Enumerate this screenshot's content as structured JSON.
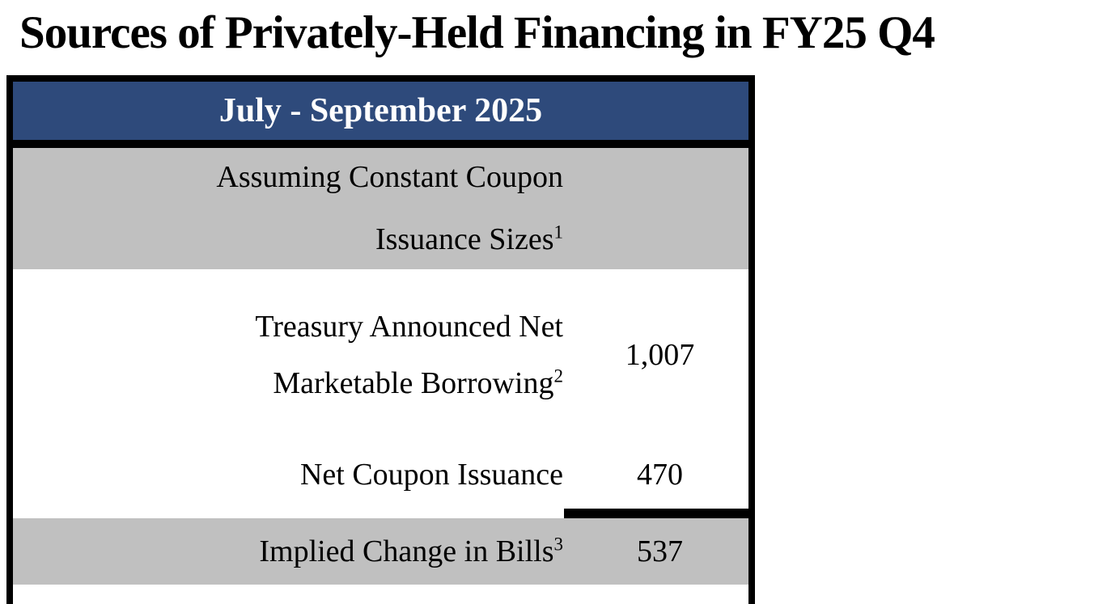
{
  "title": "Sources of Privately-Held Financing in FY25 Q4",
  "table": {
    "header": "July - September 2025",
    "rows": [
      {
        "label_line1": "Assuming Constant Coupon",
        "label_line2": "Issuance Sizes",
        "footnote": "1",
        "value": ""
      },
      {
        "label_line1": "Treasury Announced Net",
        "label_line2": "Marketable Borrowing",
        "footnote": "2",
        "value": "1,007"
      },
      {
        "label": "Net Coupon Issuance",
        "value": "470"
      },
      {
        "label": "Implied Change in Bills",
        "footnote": "3",
        "value": "537"
      }
    ]
  },
  "chart_data": {
    "type": "table",
    "title": "Sources of Privately-Held Financing in FY25 Q4",
    "period": "July - September 2025",
    "rows": [
      {
        "label": "Assuming Constant Coupon Issuance Sizes",
        "footnote": 1,
        "value": null
      },
      {
        "label": "Treasury Announced Net Marketable Borrowing",
        "footnote": 2,
        "value": 1007
      },
      {
        "label": "Net Coupon Issuance",
        "footnote": null,
        "value": 470
      },
      {
        "label": "Implied Change in Bills",
        "footnote": 3,
        "value": 537
      }
    ]
  },
  "colors": {
    "header_bg": "#2e4a7b",
    "header_text": "#ffffff",
    "row_gray": "#c0c0c0",
    "border_color": "#000000",
    "page_bg": "#ffffff",
    "text_color": "#000000"
  }
}
